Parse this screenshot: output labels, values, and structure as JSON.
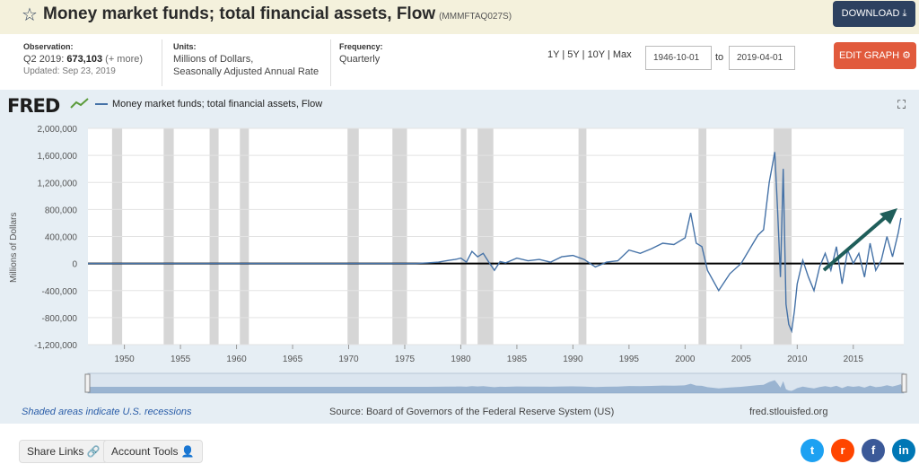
{
  "header": {
    "title": "Money market funds; total financial assets, Flow",
    "series_id": "(MMMFTAQ027S)",
    "download_label": "DOWNLOAD"
  },
  "info": {
    "observation_label": "Observation:",
    "observation_period": "Q2 2019:",
    "observation_value": "673,103",
    "observation_more": "(+ more)",
    "updated": "Updated: Sep 23, 2019",
    "units_label": "Units:",
    "units_line1": "Millions of Dollars,",
    "units_line2": "Seasonally Adjusted Annual Rate",
    "frequency_label": "Frequency:",
    "frequency_value": "Quarterly",
    "range_links": [
      "1Y",
      "5Y",
      "10Y",
      "Max"
    ],
    "start_date": "1946-10-01",
    "to_label": "to",
    "end_date": "2019-04-01",
    "edit_label": "EDIT GRAPH"
  },
  "graph": {
    "logo": "FRED",
    "legend": "Money market funds; total financial assets, Flow",
    "footer_note": "Shaded areas indicate U.S. recessions",
    "source": "Source: Board of Governors of the Federal Reserve System (US)",
    "url": "fred.stlouisfed.org"
  },
  "bottom": {
    "share_label": "Share Links",
    "account_label": "Account Tools"
  },
  "colors": {
    "series": "#4572a7",
    "recession": "#d6d6d6",
    "arrow": "#1f5e5a",
    "download": "#2d4160",
    "edit": "#e15a3c"
  },
  "chart_data": {
    "type": "line",
    "ylabel": "Millions of Dollars",
    "ylim": [
      -1200000,
      2000000
    ],
    "xlim": [
      1946.75,
      2019.5
    ],
    "yticks": [
      2000000,
      1600000,
      1200000,
      800000,
      400000,
      0,
      -400000,
      -800000,
      -1200000
    ],
    "ytick_labels": [
      "2,000,000",
      "1,600,000",
      "1,200,000",
      "800,000",
      "400,000",
      "0",
      "-400,000",
      "-800,000",
      "-1,200,000"
    ],
    "xticks": [
      1950,
      1955,
      1960,
      1965,
      1970,
      1975,
      1980,
      1985,
      1990,
      1995,
      2000,
      2005,
      2010,
      2015
    ],
    "recessions": [
      [
        1948.9,
        1949.8
      ],
      [
        1953.5,
        1954.4
      ],
      [
        1957.6,
        1958.4
      ],
      [
        1960.3,
        1961.1
      ],
      [
        1969.9,
        1970.9
      ],
      [
        1973.9,
        1975.2
      ],
      [
        1980.0,
        1980.5
      ],
      [
        1981.5,
        1982.9
      ],
      [
        1990.5,
        1991.2
      ],
      [
        2001.2,
        2001.9
      ],
      [
        2007.9,
        2009.5
      ]
    ],
    "series": [
      {
        "name": "Money market funds; total financial assets, Flow",
        "x": [
          1946.75,
          1970,
          1974,
          1976,
          1977,
          1978,
          1979,
          1979.5,
          1980,
          1980.5,
          1981,
          1981.5,
          1982,
          1982.5,
          1983,
          1983.5,
          1984,
          1985,
          1986,
          1987,
          1988,
          1989,
          1990,
          1991,
          1992,
          1993,
          1994,
          1995,
          1996,
          1997,
          1998,
          1999,
          2000,
          2000.5,
          2001,
          2001.5,
          2002,
          2003,
          2004,
          2005,
          2006,
          2006.5,
          2007,
          2007.5,
          2008,
          2008.25,
          2008.5,
          2008.75,
          2009,
          2009.25,
          2009.5,
          2009.75,
          2010,
          2010.5,
          2011,
          2011.5,
          2012,
          2012.5,
          2013,
          2013.5,
          2014,
          2014.5,
          2015,
          2015.5,
          2016,
          2016.5,
          2017,
          2017.5,
          2018,
          2018.5,
          2019,
          2019.25
        ],
        "values": [
          0,
          0,
          0,
          0,
          10000,
          20000,
          50000,
          60000,
          80000,
          20000,
          180000,
          100000,
          150000,
          20000,
          -100000,
          30000,
          10000,
          80000,
          40000,
          60000,
          20000,
          100000,
          120000,
          60000,
          -50000,
          20000,
          40000,
          200000,
          150000,
          220000,
          300000,
          280000,
          380000,
          750000,
          300000,
          250000,
          -100000,
          -400000,
          -150000,
          0,
          280000,
          420000,
          500000,
          1200000,
          1650000,
          800000,
          -200000,
          1400000,
          -600000,
          -900000,
          -1000000,
          -700000,
          -300000,
          50000,
          -200000,
          -400000,
          -50000,
          150000,
          -100000,
          250000,
          -300000,
          200000,
          0,
          150000,
          -200000,
          300000,
          -100000,
          50000,
          400000,
          100000,
          450000,
          673103
        ]
      }
    ]
  }
}
